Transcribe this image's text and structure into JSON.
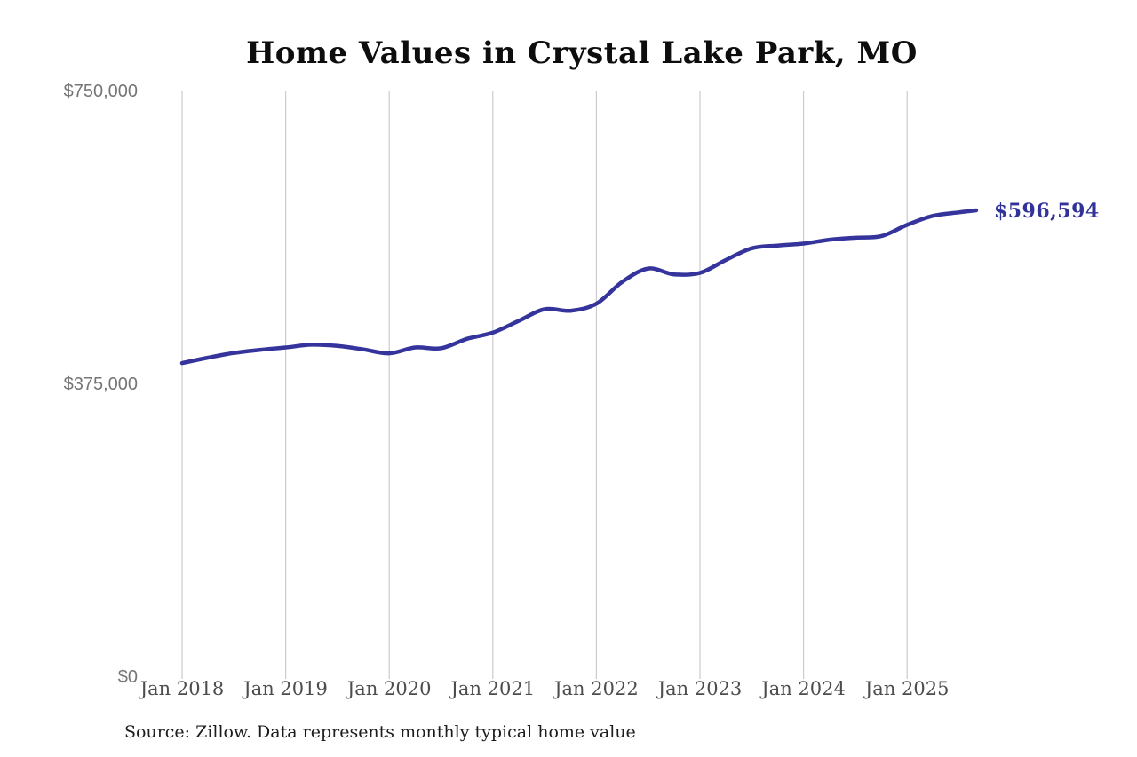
{
  "title": "Home Values in Crystal Lake Park, MO",
  "source_note": "Source: Zillow. Data represents monthly typical home value",
  "colors": {
    "line": "#34349c",
    "grid": "#cccccc",
    "y_tick_label": "#757575",
    "x_tick_label": "#4d4d4d",
    "title": "#0d0d0d",
    "source": "#1c1c1c",
    "end_label": "#32329b",
    "background": "#ffffff"
  },
  "chart_data": {
    "type": "line",
    "title": "Home Values in Crystal Lake Park, MO",
    "xlabel": "",
    "ylabel": "",
    "ylim": [
      0,
      750000
    ],
    "grid": "vertical-only",
    "legend": "none",
    "x": [
      "2018-01",
      "2018-04",
      "2018-07",
      "2018-10",
      "2019-01",
      "2019-04",
      "2019-07",
      "2019-10",
      "2020-01",
      "2020-04",
      "2020-07",
      "2020-10",
      "2021-01",
      "2021-04",
      "2021-07",
      "2021-10",
      "2022-01",
      "2022-04",
      "2022-07",
      "2022-10",
      "2023-01",
      "2023-04",
      "2023-07",
      "2023-10",
      "2024-01",
      "2024-04",
      "2024-07",
      "2024-10",
      "2025-01",
      "2025-04",
      "2025-07",
      "2025-09"
    ],
    "values": [
      401000,
      408000,
      414000,
      418000,
      421000,
      424500,
      423000,
      418500,
      413500,
      421000,
      420000,
      432000,
      440000,
      455000,
      470000,
      468000,
      477000,
      505000,
      522000,
      514500,
      516500,
      533000,
      548000,
      551500,
      554000,
      559000,
      561500,
      563500,
      578000,
      589500,
      594000,
      596594
    ],
    "y_ticks": [
      {
        "label": "$750,000",
        "value": 750000
      },
      {
        "label": "$375,000",
        "value": 375000
      },
      {
        "label": "$0",
        "value": 0
      }
    ],
    "x_ticks": [
      {
        "label": "Jan 2018",
        "month": "2018-01"
      },
      {
        "label": "Jan 2019",
        "month": "2019-01"
      },
      {
        "label": "Jan 2020",
        "month": "2020-01"
      },
      {
        "label": "Jan 2021",
        "month": "2021-01"
      },
      {
        "label": "Jan 2022",
        "month": "2022-01"
      },
      {
        "label": "Jan 2023",
        "month": "2023-01"
      },
      {
        "label": "Jan 2024",
        "month": "2024-01"
      },
      {
        "label": "Jan 2025",
        "month": "2025-01"
      }
    ],
    "final_value": 596594,
    "final_value_label": "$596,594"
  }
}
